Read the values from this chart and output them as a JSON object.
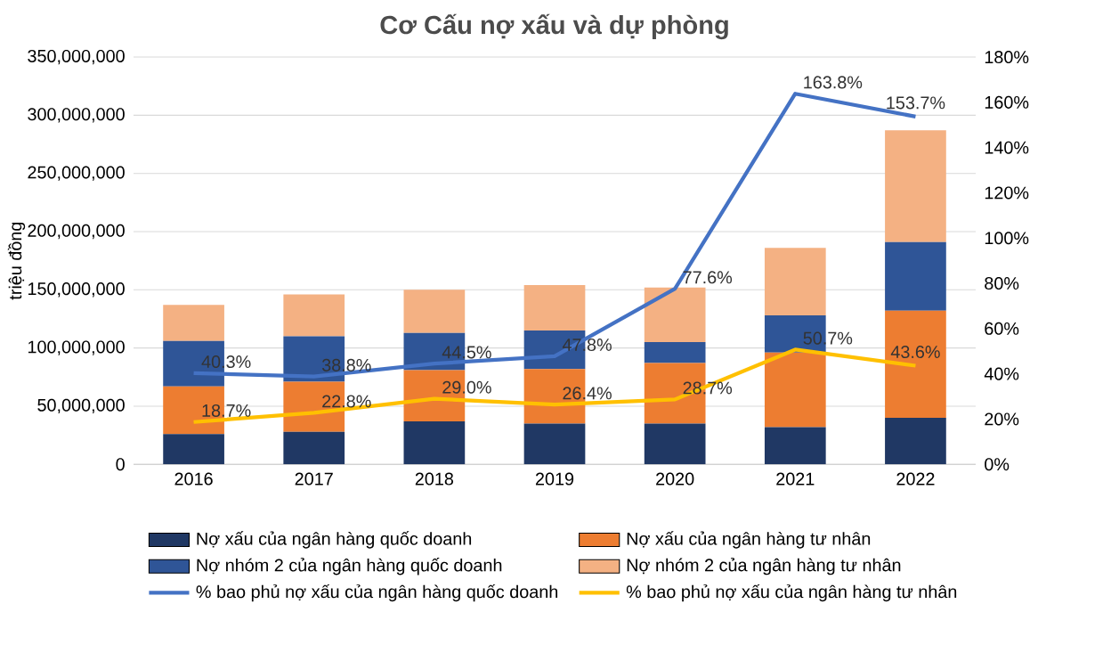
{
  "chart_data": {
    "type": "bar",
    "title": "Cơ Cấu nợ xấu và dự phòng",
    "ylabel": "triệu đồng",
    "stacked": true,
    "grid": "y",
    "legend": "bottom",
    "categories": [
      "2016",
      "2017",
      "2018",
      "2019",
      "2020",
      "2021",
      "2022"
    ],
    "ylim": [
      0,
      350000000
    ],
    "yticks": [
      {
        "value": 0,
        "label": "0"
      },
      {
        "value": 50000000,
        "label": "50,000,000"
      },
      {
        "value": 100000000,
        "label": "100,000,000"
      },
      {
        "value": 150000000,
        "label": "150,000,000"
      },
      {
        "value": 200000000,
        "label": "200,000,000"
      },
      {
        "value": 250000000,
        "label": "250,000,000"
      },
      {
        "value": 300000000,
        "label": "300,000,000"
      },
      {
        "value": 350000000,
        "label": "350,000,000"
      }
    ],
    "y2lim": [
      0,
      180
    ],
    "y2ticks": [
      {
        "value": 0,
        "label": "0%"
      },
      {
        "value": 20,
        "label": "20%"
      },
      {
        "value": 40,
        "label": "40%"
      },
      {
        "value": 60,
        "label": "60%"
      },
      {
        "value": 80,
        "label": "80%"
      },
      {
        "value": 100,
        "label": "100%"
      },
      {
        "value": 120,
        "label": "120%"
      },
      {
        "value": 140,
        "label": "140%"
      },
      {
        "value": 160,
        "label": "160%"
      },
      {
        "value": 180,
        "label": "180%"
      }
    ],
    "series": [
      {
        "name": "Nợ xấu của ngân hàng quốc doanh",
        "type": "bar",
        "color": "#203864",
        "values": [
          26000000,
          28000000,
          37000000,
          35000000,
          35000000,
          32000000,
          40000000
        ]
      },
      {
        "name": "Nợ xấu của ngân hàng tư nhân",
        "type": "bar",
        "color": "#ed7d31",
        "values": [
          41000000,
          43000000,
          44000000,
          47000000,
          52000000,
          64000000,
          92000000
        ]
      },
      {
        "name": "Nợ nhóm 2 của ngân hàng quốc doanh",
        "type": "bar",
        "color": "#2f5597",
        "values": [
          39000000,
          39000000,
          32000000,
          33000000,
          18000000,
          32000000,
          59000000
        ]
      },
      {
        "name": "Nợ nhóm 2 của ngân hàng tư nhân",
        "type": "bar",
        "color": "#f4b183",
        "values": [
          31000000,
          36000000,
          37000000,
          39000000,
          47000000,
          58000000,
          96000000
        ]
      },
      {
        "name": "% bao phủ nợ xấu của ngân hàng quốc doanh",
        "type": "line",
        "axis": "y2",
        "color": "#4472c4",
        "values": [
          40.3,
          38.8,
          44.5,
          47.8,
          77.6,
          163.8,
          153.7
        ],
        "value_labels": [
          "40.3%",
          "38.8%",
          "44.5%",
          "47.8%",
          "77.6%",
          "163.8%",
          "153.7%"
        ]
      },
      {
        "name": "% bao phủ nợ xấu của ngân hàng tư nhân",
        "type": "line",
        "axis": "y2",
        "color": "#ffc000",
        "values": [
          18.7,
          22.8,
          29.0,
          26.4,
          28.7,
          50.7,
          43.6
        ],
        "value_labels": [
          "18.7%",
          "22.8%",
          "29.0%",
          "26.4%",
          "28.7%",
          "50.7%",
          "43.6%"
        ]
      }
    ]
  }
}
